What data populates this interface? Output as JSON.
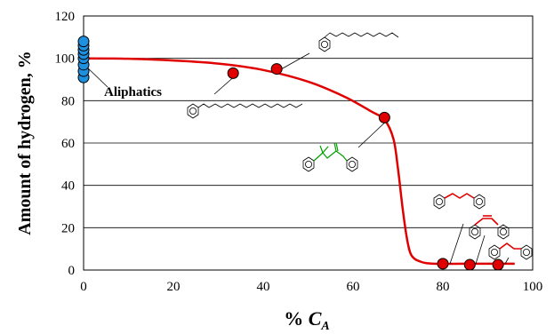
{
  "chart_data": {
    "type": "scatter",
    "xlabel": "% ",
    "xlabel_var": "C",
    "xlabel_sub": "A",
    "ylabel": "Amount of hydrogen, %",
    "xlim": [
      0,
      100
    ],
    "ylim": [
      0,
      120
    ],
    "x_ticks": [
      "0",
      "20",
      "40",
      "60",
      "80",
      "100"
    ],
    "y_ticks": [
      "0",
      "20",
      "40",
      "60",
      "80",
      "100",
      "120"
    ],
    "grid": "horizontal",
    "annotation": "Aliphatics",
    "colors": {
      "curve": "#e00000",
      "red_point": "#e00000",
      "blue_point": "#1e90e0",
      "highlight_red": "#e00000",
      "highlight_green": "#00a000"
    },
    "series": [
      {
        "marker": "blue-circle",
        "points": [
          [
            0,
            91
          ],
          [
            0,
            94
          ],
          [
            0,
            97
          ],
          [
            0,
            100
          ],
          [
            0,
            102
          ],
          [
            0,
            104
          ],
          [
            0,
            106
          ],
          [
            0,
            108
          ]
        ]
      },
      {
        "marker": "red-circle",
        "points": [
          [
            33.3,
            93
          ],
          [
            43,
            95
          ],
          [
            67,
            72
          ],
          [
            80,
            3
          ],
          [
            86,
            2.5
          ],
          [
            92.3,
            2.5
          ]
        ]
      },
      {
        "line": "red-trend",
        "points": [
          [
            0,
            100
          ],
          [
            10,
            99.8
          ],
          [
            20,
            99
          ],
          [
            30,
            97.5
          ],
          [
            40,
            94.5
          ],
          [
            50,
            89
          ],
          [
            58,
            82
          ],
          [
            64,
            75
          ],
          [
            67,
            71
          ],
          [
            69,
            62
          ],
          [
            70,
            48
          ],
          [
            71,
            30
          ],
          [
            72,
            15
          ],
          [
            73,
            7
          ],
          [
            75,
            4
          ],
          [
            78,
            3
          ],
          [
            85,
            3
          ],
          [
            96,
            3
          ]
        ]
      }
    ]
  }
}
